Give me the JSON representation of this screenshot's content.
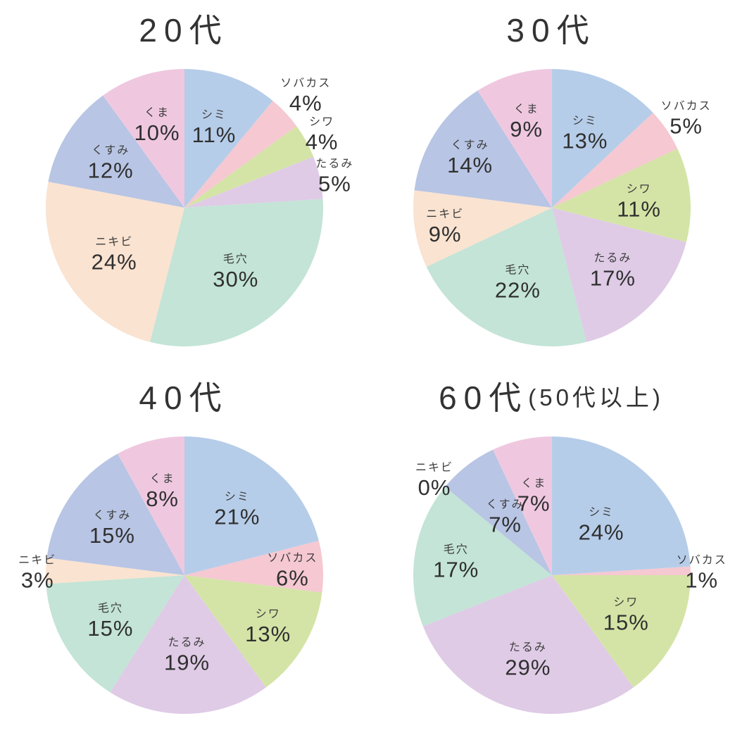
{
  "page": {
    "background": "#ffffff",
    "text_color": "#333333"
  },
  "chart_data": [
    {
      "type": "pie",
      "title": "20代",
      "title_main": "20代",
      "title_suffix": "",
      "start_angle": "12-oclock",
      "direction": "clockwise",
      "unit": "%",
      "categories": [
        "シミ",
        "ソバカス",
        "シワ",
        "たるみ",
        "毛穴",
        "ニキビ",
        "くすみ",
        "くま"
      ],
      "category_ids": [
        "shimi",
        "sobakasu",
        "shiwa",
        "tarumi",
        "keana",
        "nikibi",
        "kusumi",
        "kuma"
      ],
      "values": [
        11,
        4,
        4,
        5,
        30,
        24,
        12,
        10
      ],
      "colors": [
        "#b6cde9",
        "#f5c8d2",
        "#d4e4a6",
        "#dfcbe6",
        "#c3e4d6",
        "#fae3d1",
        "#b8c5e4",
        "#efc8e0"
      ],
      "label_radius": [
        0.63,
        1.2,
        1.13,
        1.11,
        0.58,
        0.6,
        0.63,
        0.64
      ]
    },
    {
      "type": "pie",
      "title": "30代",
      "title_main": "30代",
      "title_suffix": "",
      "start_angle": "12-oclock",
      "direction": "clockwise",
      "unit": "%",
      "categories": [
        "シミ",
        "ソバカス",
        "シワ",
        "たるみ",
        "毛穴",
        "ニキビ",
        "くすみ",
        "くま"
      ],
      "category_ids": [
        "shimi",
        "sobakasu",
        "shiwa",
        "tarumi",
        "keana",
        "nikibi",
        "kusumi",
        "kuma"
      ],
      "values": [
        13,
        5,
        11,
        17,
        22,
        9,
        14,
        9
      ],
      "colors": [
        "#b6cde9",
        "#f5c8d2",
        "#d4e4a6",
        "#dfcbe6",
        "#c3e4d6",
        "#fae3d1",
        "#b8c5e4",
        "#efc8e0"
      ],
      "label_radius": [
        0.6,
        1.17,
        0.63,
        0.62,
        0.58,
        0.78,
        0.7,
        0.66
      ]
    },
    {
      "type": "pie",
      "title": "40代",
      "title_main": "40代",
      "title_suffix": "",
      "start_angle": "12-oclock",
      "direction": "clockwise",
      "unit": "%",
      "categories": [
        "シミ",
        "ソバカス",
        "シワ",
        "たるみ",
        "毛穴",
        "ニキビ",
        "くすみ",
        "くま"
      ],
      "category_ids": [
        "shimi",
        "sobakasu",
        "shiwa",
        "tarumi",
        "keana",
        "nikibi",
        "kusumi",
        "kuma"
      ],
      "values": [
        21,
        6,
        13,
        19,
        15,
        3,
        15,
        8
      ],
      "colors": [
        "#b6cde9",
        "#f5c8d2",
        "#d4e4a6",
        "#dfcbe6",
        "#c3e4d6",
        "#fae3d1",
        "#b8c5e4",
        "#efc8e0"
      ],
      "label_radius": [
        0.62,
        0.78,
        0.7,
        0.56,
        0.62,
        1.06,
        0.63,
        0.64
      ]
    },
    {
      "type": "pie",
      "title": "60代(50代以上)",
      "title_main": "60代",
      "title_suffix": "(50代以上)",
      "start_angle": "12-oclock",
      "direction": "clockwise",
      "unit": "%",
      "categories": [
        "シミ",
        "ソバカス",
        "シワ",
        "たるみ",
        "毛穴",
        "ニキビ",
        "くすみ",
        "くま"
      ],
      "category_ids": [
        "shimi",
        "sobakasu",
        "shiwa",
        "tarumi",
        "keana",
        "nikibi",
        "kusumi",
        "kuma"
      ],
      "values": [
        24,
        1,
        15,
        29,
        17,
        0,
        7,
        7
      ],
      "colors": [
        "#b6cde9",
        "#f5c8d2",
        "#d4e4a6",
        "#dfcbe6",
        "#c3e4d6",
        "#fae3d1",
        "#b8c5e4",
        "#efc8e0"
      ],
      "label_radius": [
        0.52,
        1.08,
        0.6,
        0.62,
        0.7,
        1.1,
        0.55,
        0.6
      ]
    }
  ]
}
